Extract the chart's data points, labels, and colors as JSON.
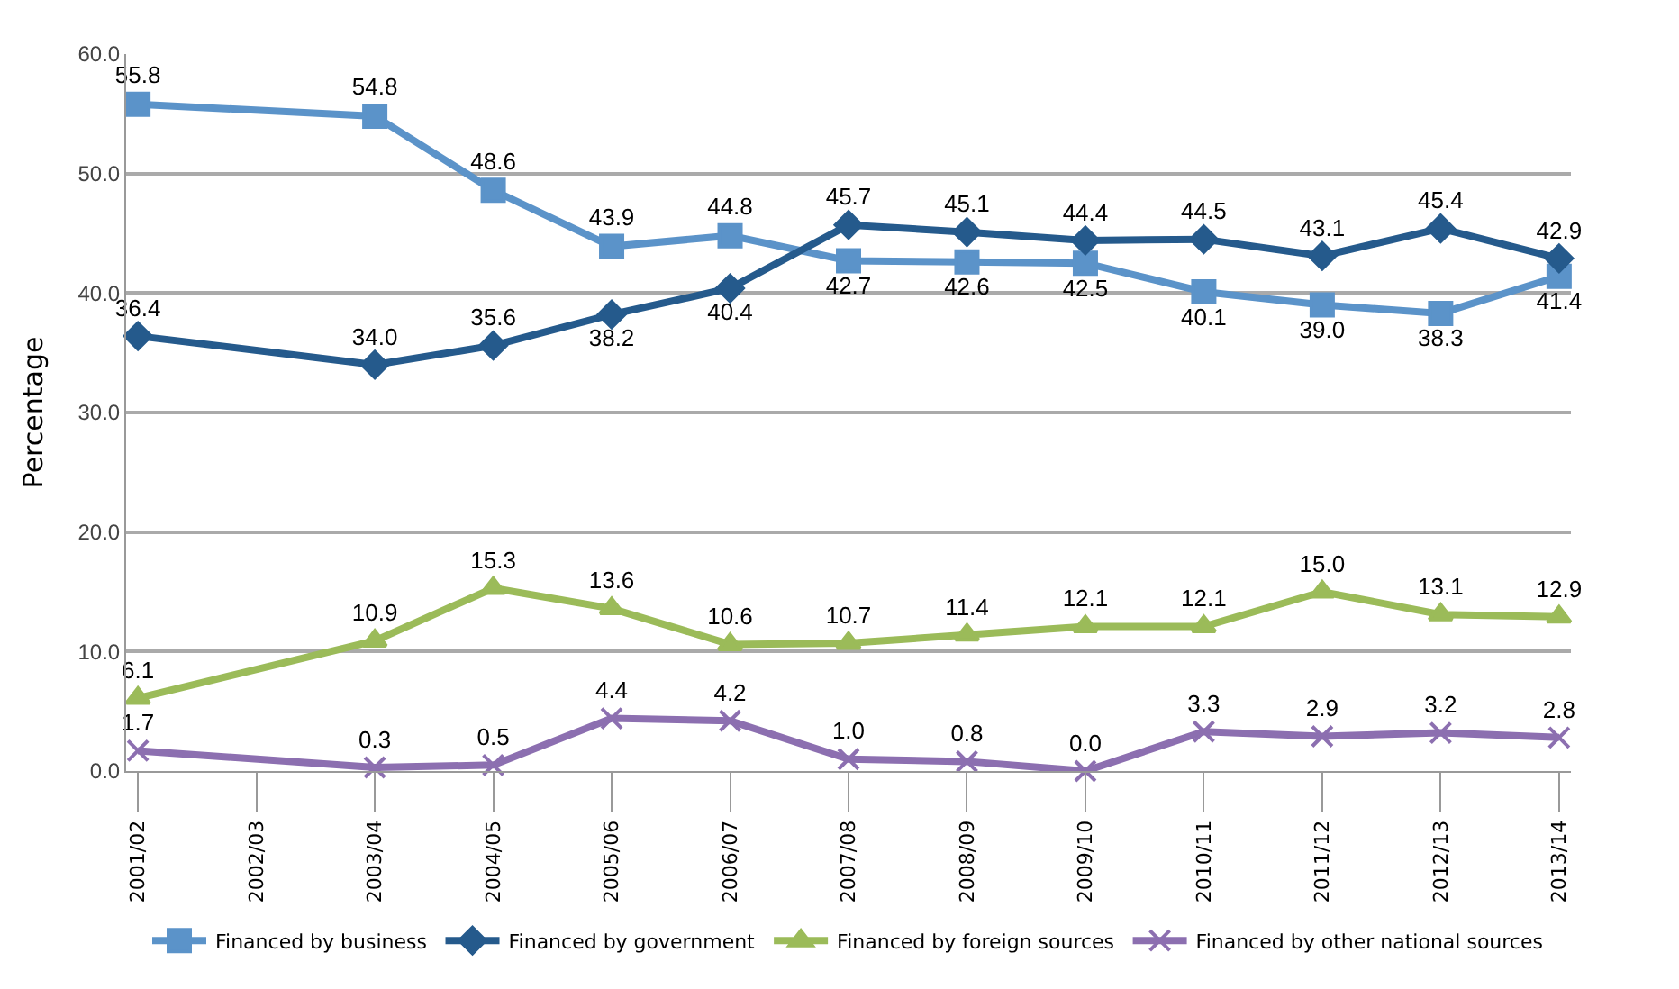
{
  "chart_data": {
    "type": "line",
    "ylabel": "Percentage",
    "categories": [
      "2001/02",
      "2002/03",
      "2003/04",
      "2004/05",
      "2005/06",
      "2006/07",
      "2007/08",
      "2008/09",
      "2009/10",
      "2010/11",
      "2011/12",
      "2012/13",
      "2013/14"
    ],
    "series": [
      {
        "name": "Financed by business",
        "color": "#5b93c9",
        "marker": "square",
        "values": [
          55.8,
          null,
          54.8,
          48.6,
          43.9,
          44.8,
          42.7,
          42.6,
          42.5,
          40.1,
          39.0,
          38.3,
          41.4
        ],
        "value_labels": [
          "55.8",
          null,
          "54.8",
          "48.6",
          "43.9",
          "44.8",
          "42.7",
          "42.6",
          "42.5",
          "40.1",
          "39.0",
          "38.3",
          "41.4"
        ]
      },
      {
        "name": "Financed by government",
        "color": "#255a8c",
        "marker": "diamond",
        "values": [
          36.4,
          null,
          34.0,
          35.6,
          38.2,
          40.4,
          45.7,
          45.1,
          44.4,
          44.5,
          43.1,
          45.4,
          42.9
        ],
        "value_labels": [
          "36.4",
          null,
          "34.0",
          "35.6",
          "38.2",
          "40.4",
          "45.7",
          "45.1",
          "44.4",
          "44.5",
          "43.1",
          "45.4",
          "42.9"
        ]
      },
      {
        "name": "Financed by foreign sources",
        "color": "#9bbb59",
        "marker": "triangle",
        "values": [
          6.1,
          null,
          10.9,
          15.3,
          13.6,
          10.6,
          10.7,
          11.4,
          12.1,
          12.1,
          15.0,
          13.1,
          12.9
        ],
        "value_labels": [
          "6.1",
          null,
          "10.9",
          "15.3",
          "13.6",
          "10.6",
          "10.7",
          "11.4",
          "12.1",
          "12.1",
          "15.0",
          "13.1",
          "12.9"
        ]
      },
      {
        "name": "Financed by other national sources",
        "color": "#8c6fb0",
        "marker": "cross",
        "values": [
          1.7,
          null,
          0.3,
          0.5,
          4.4,
          4.2,
          1.0,
          0.8,
          0.0,
          3.3,
          2.9,
          3.2,
          2.8
        ],
        "value_labels": [
          "1.7",
          null,
          "0.3",
          "0.5",
          "4.4",
          "4.2",
          "1.0",
          "0.8",
          "0.0",
          "3.3",
          "2.9",
          "3.2",
          "2.8"
        ]
      }
    ],
    "ylim": [
      0,
      60
    ],
    "yticks": [
      {
        "value": 0,
        "label": "0.0"
      },
      {
        "value": 10,
        "label": "10.0"
      },
      {
        "value": 20,
        "label": "20.0"
      },
      {
        "value": 30,
        "label": "30.0"
      },
      {
        "value": 40,
        "label": "40.0"
      },
      {
        "value": 50,
        "label": "50.0"
      },
      {
        "value": 60,
        "label": "60.0"
      }
    ],
    "grid": "y",
    "legend": "bottom",
    "line_style": "solid"
  }
}
